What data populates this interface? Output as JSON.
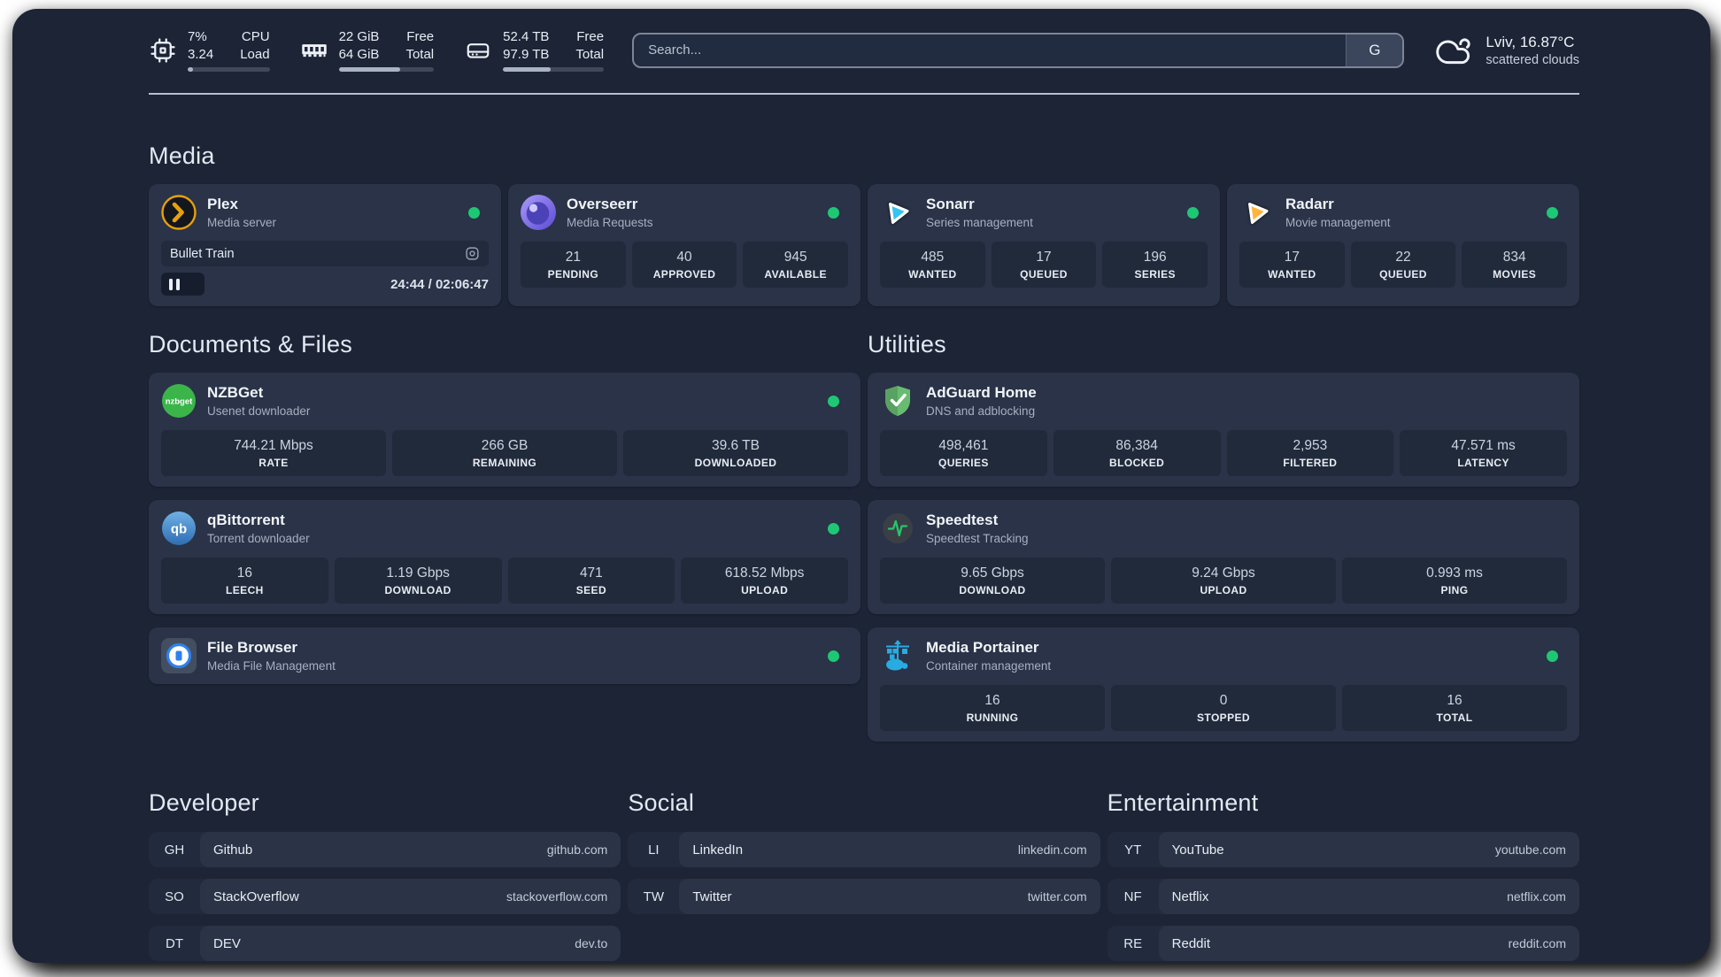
{
  "colors": {
    "panel_bg": "#1c2436",
    "card_bg": "#2a3347",
    "stat_bg": "#212a3b",
    "status_dot_green": "#1ec774",
    "plex_orange": "#e5a00d",
    "sonarr_blue": "#36c3f1",
    "radarr_yellow": "#ffb53d",
    "overseerr_purple": "#6a5cd6",
    "nzbget_green": "#3bb54a",
    "qbittorrent_blue": "#4a90d9",
    "adguard_green": "#68bc71",
    "speedtest_pulse_green": "#27c46c",
    "portainer_blue": "#29abe2",
    "filebrowser_blue": "#2f80ed"
  },
  "header": {
    "widgets": [
      {
        "rows": [
          {
            "value": "7%",
            "label": "CPU"
          },
          {
            "value": "3.24",
            "label": "Load"
          }
        ],
        "progress_pct": 7
      },
      {
        "rows": [
          {
            "value": "22 GiB",
            "label": "Free"
          },
          {
            "value": "64 GiB",
            "label": "Total"
          }
        ],
        "progress_pct": 65
      },
      {
        "rows": [
          {
            "value": "52.4 TB",
            "label": "Free"
          },
          {
            "value": "97.9 TB",
            "label": "Total"
          }
        ],
        "progress_pct": 47
      }
    ],
    "search": {
      "placeholder": "Search...",
      "button_label": "G"
    },
    "weather": {
      "location_temp": "Lviv, 16.87°C",
      "condition": "scattered clouds"
    }
  },
  "sections": {
    "media": {
      "title": "Media",
      "plex": {
        "name": "Plex",
        "description": "Media server",
        "now_playing": {
          "title": "Bullet Train",
          "time": "24:44 / 02:06:47",
          "progress_pct": 19.5
        }
      },
      "overseerr": {
        "name": "Overseerr",
        "description": "Media Requests",
        "stats": [
          {
            "value": "21",
            "label": "PENDING"
          },
          {
            "value": "40",
            "label": "APPROVED"
          },
          {
            "value": "945",
            "label": "AVAILABLE"
          }
        ]
      },
      "sonarr": {
        "name": "Sonarr",
        "description": "Series management",
        "stats": [
          {
            "value": "485",
            "label": "WANTED"
          },
          {
            "value": "17",
            "label": "QUEUED"
          },
          {
            "value": "196",
            "label": "SERIES"
          }
        ]
      },
      "radarr": {
        "name": "Radarr",
        "description": "Movie management",
        "stats": [
          {
            "value": "17",
            "label": "WANTED"
          },
          {
            "value": "22",
            "label": "QUEUED"
          },
          {
            "value": "834",
            "label": "MOVIES"
          }
        ]
      }
    },
    "documents": {
      "title": "Documents & Files",
      "nzbget": {
        "name": "NZBGet",
        "description": "Usenet downloader",
        "stats": [
          {
            "value": "744.21 Mbps",
            "label": "RATE"
          },
          {
            "value": "266 GB",
            "label": "REMAINING"
          },
          {
            "value": "39.6 TB",
            "label": "DOWNLOADED"
          }
        ]
      },
      "qbittorrent": {
        "name": "qBittorrent",
        "description": "Torrent downloader",
        "stats": [
          {
            "value": "16",
            "label": "LEECH"
          },
          {
            "value": "1.19 Gbps",
            "label": "DOWNLOAD"
          },
          {
            "value": "471",
            "label": "SEED"
          },
          {
            "value": "618.52 Mbps",
            "label": "UPLOAD"
          }
        ]
      },
      "filebrowser": {
        "name": "File Browser",
        "description": "Media File Management"
      }
    },
    "utilities": {
      "title": "Utilities",
      "adguard": {
        "name": "AdGuard Home",
        "description": "DNS and adblocking",
        "stats": [
          {
            "value": "498,461",
            "label": "QUERIES"
          },
          {
            "value": "86,384",
            "label": "BLOCKED"
          },
          {
            "value": "2,953",
            "label": "FILTERED"
          },
          {
            "value": "47.571 ms",
            "label": "LATENCY"
          }
        ]
      },
      "speedtest": {
        "name": "Speedtest",
        "description": "Speedtest Tracking",
        "stats": [
          {
            "value": "9.65 Gbps",
            "label": "DOWNLOAD"
          },
          {
            "value": "9.24 Gbps",
            "label": "UPLOAD"
          },
          {
            "value": "0.993 ms",
            "label": "PING"
          }
        ]
      },
      "portainer": {
        "name": "Media Portainer",
        "description": "Container management",
        "stats": [
          {
            "value": "16",
            "label": "RUNNING"
          },
          {
            "value": "0",
            "label": "STOPPED"
          },
          {
            "value": "16",
            "label": "TOTAL"
          }
        ]
      }
    },
    "bookmarks": {
      "developer": {
        "title": "Developer",
        "links": [
          {
            "abbr": "GH",
            "name": "Github",
            "url": "github.com"
          },
          {
            "abbr": "SO",
            "name": "StackOverflow",
            "url": "stackoverflow.com"
          },
          {
            "abbr": "DT",
            "name": "DEV",
            "url": "dev.to"
          }
        ]
      },
      "social": {
        "title": "Social",
        "links": [
          {
            "abbr": "LI",
            "name": "LinkedIn",
            "url": "linkedin.com"
          },
          {
            "abbr": "TW",
            "name": "Twitter",
            "url": "twitter.com"
          }
        ]
      },
      "entertainment": {
        "title": "Entertainment",
        "links": [
          {
            "abbr": "YT",
            "name": "YouTube",
            "url": "youtube.com"
          },
          {
            "abbr": "NF",
            "name": "Netflix",
            "url": "netflix.com"
          },
          {
            "abbr": "RE",
            "name": "Reddit",
            "url": "reddit.com"
          }
        ]
      }
    }
  }
}
